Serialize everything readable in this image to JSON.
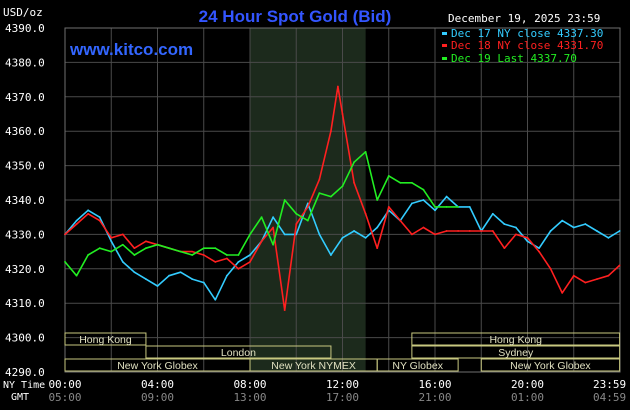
{
  "chart_data": {
    "type": "line",
    "title": "24 Hour Spot Gold (Bid)",
    "source": "www.kitco.com",
    "date_label": "December 19, 2025 23:59",
    "ylabel": "USD/oz",
    "ylim": [
      4290,
      4390
    ],
    "y_ticks": [
      "4390.0",
      "4380.0",
      "4370.0",
      "4360.0",
      "4350.0",
      "4340.0",
      "4330.0",
      "4320.0",
      "4310.0",
      "4300.0",
      "4290.0"
    ],
    "x_time_labels": {
      "ny_label": "NY Time",
      "gmt_label": "GMT"
    },
    "x_ticks_ny": [
      "00:00",
      "04:00",
      "08:00",
      "12:00",
      "16:00",
      "20:00",
      "23:59"
    ],
    "x_ticks_gmt": [
      "05:00",
      "09:00",
      "13:00",
      "17:00",
      "21:00",
      "01:00",
      "04:59"
    ],
    "x_tick_hours": [
      0,
      4,
      8,
      12,
      16,
      20,
      23.983
    ],
    "grid": true,
    "highlight_band_hours": [
      8,
      13
    ],
    "sessions": [
      {
        "name": "Hong Kong",
        "start": 0,
        "end": 3.5,
        "row": 0
      },
      {
        "name": "Hong Kong",
        "start": 15,
        "end": 23.983,
        "row": 0
      },
      {
        "name": "London",
        "start": 3.5,
        "end": 11.5,
        "row": 1
      },
      {
        "name": "Sydney",
        "start": 15,
        "end": 23.983,
        "row": 1
      },
      {
        "name": "New York Globex",
        "start": 0,
        "end": 8,
        "row": 2
      },
      {
        "name": "New York NYMEX",
        "start": 8,
        "end": 13.5,
        "row": 2
      },
      {
        "name": "NY Globex",
        "start": 13.5,
        "end": 17,
        "row": 2
      },
      {
        "name": "New York Globex",
        "start": 18,
        "end": 23.983,
        "row": 2
      }
    ],
    "legend_position": "top-right",
    "series": [
      {
        "name": "Dec 17 NY close 4337.30",
        "color": "#33ccff",
        "x": [
          0,
          0.5,
          1,
          1.5,
          2,
          2.5,
          3,
          3.5,
          4,
          4.5,
          5,
          5.5,
          6,
          6.5,
          7,
          7.5,
          8,
          8.5,
          9,
          9.5,
          10,
          10.5,
          11,
          11.5,
          12,
          12.5,
          13,
          13.5,
          14,
          14.5,
          15,
          15.5,
          16,
          16.5,
          17,
          17.5,
          18,
          18.5,
          19,
          19.5,
          20,
          20.5,
          21,
          21.5,
          22,
          22.5,
          23,
          23.5,
          23.983
        ],
        "y": [
          4330,
          4334,
          4337,
          4335,
          4328,
          4322,
          4319,
          4317,
          4315,
          4318,
          4319,
          4317,
          4316,
          4311,
          4318,
          4322,
          4324,
          4328,
          4335,
          4330,
          4330,
          4339,
          4330,
          4324,
          4329,
          4331,
          4329,
          4332,
          4337,
          4334,
          4339,
          4340,
          4337,
          4341,
          4338,
          4338,
          4331,
          4336,
          4333,
          4332,
          4328,
          4326,
          4331,
          4334,
          4332,
          4333,
          4331,
          4329,
          4331
        ]
      },
      {
        "name": "Dec 18 NY close 4331.70",
        "color": "#ff2020",
        "x": [
          0,
          0.5,
          1,
          1.5,
          2,
          2.5,
          3,
          3.5,
          4,
          4.5,
          5,
          5.5,
          6,
          6.5,
          7,
          7.5,
          8,
          8.5,
          9,
          9.5,
          10,
          10.5,
          11,
          11.5,
          11.8,
          12,
          12.5,
          13,
          13.5,
          14,
          14.5,
          15,
          15.5,
          16,
          16.5,
          17,
          17.5,
          18,
          18.5,
          19,
          19.5,
          20,
          20.5,
          21,
          21.5,
          22,
          22.5,
          23,
          23.5,
          23.983
        ],
        "y": [
          4330,
          4333,
          4336,
          4334,
          4329,
          4330,
          4326,
          4328,
          4327,
          4326,
          4325,
          4325,
          4324,
          4322,
          4323,
          4320,
          4322,
          4328,
          4332,
          4308,
          4333,
          4338,
          4346,
          4360,
          4373,
          4365,
          4345,
          4336,
          4326,
          4338,
          4334,
          4330,
          4332,
          4330,
          4331,
          4331,
          4331,
          4331,
          4331,
          4326,
          4330,
          4329,
          4325,
          4320,
          4313,
          4318,
          4316,
          4317,
          4318,
          4321
        ]
      },
      {
        "name": "Dec 19 Last 4337.70",
        "color": "#22ee22",
        "x": [
          0,
          0.5,
          1,
          1.5,
          2,
          2.5,
          3,
          3.5,
          4,
          4.5,
          5,
          5.5,
          6,
          6.5,
          7,
          7.5,
          8,
          8.5,
          9,
          9.5,
          10,
          10.5,
          11,
          11.5,
          12,
          12.5,
          13,
          13.5,
          14,
          14.5,
          15,
          15.5,
          16,
          16.5,
          17
        ],
        "y": [
          4322,
          4318,
          4324,
          4326,
          4325,
          4327,
          4324,
          4326,
          4327,
          4326,
          4325,
          4324,
          4326,
          4326,
          4324,
          4324,
          4330,
          4335,
          4327,
          4340,
          4336,
          4334,
          4342,
          4341,
          4344,
          4351,
          4354,
          4340,
          4347,
          4345,
          4345,
          4343,
          4338,
          4338,
          4338
        ]
      }
    ]
  }
}
